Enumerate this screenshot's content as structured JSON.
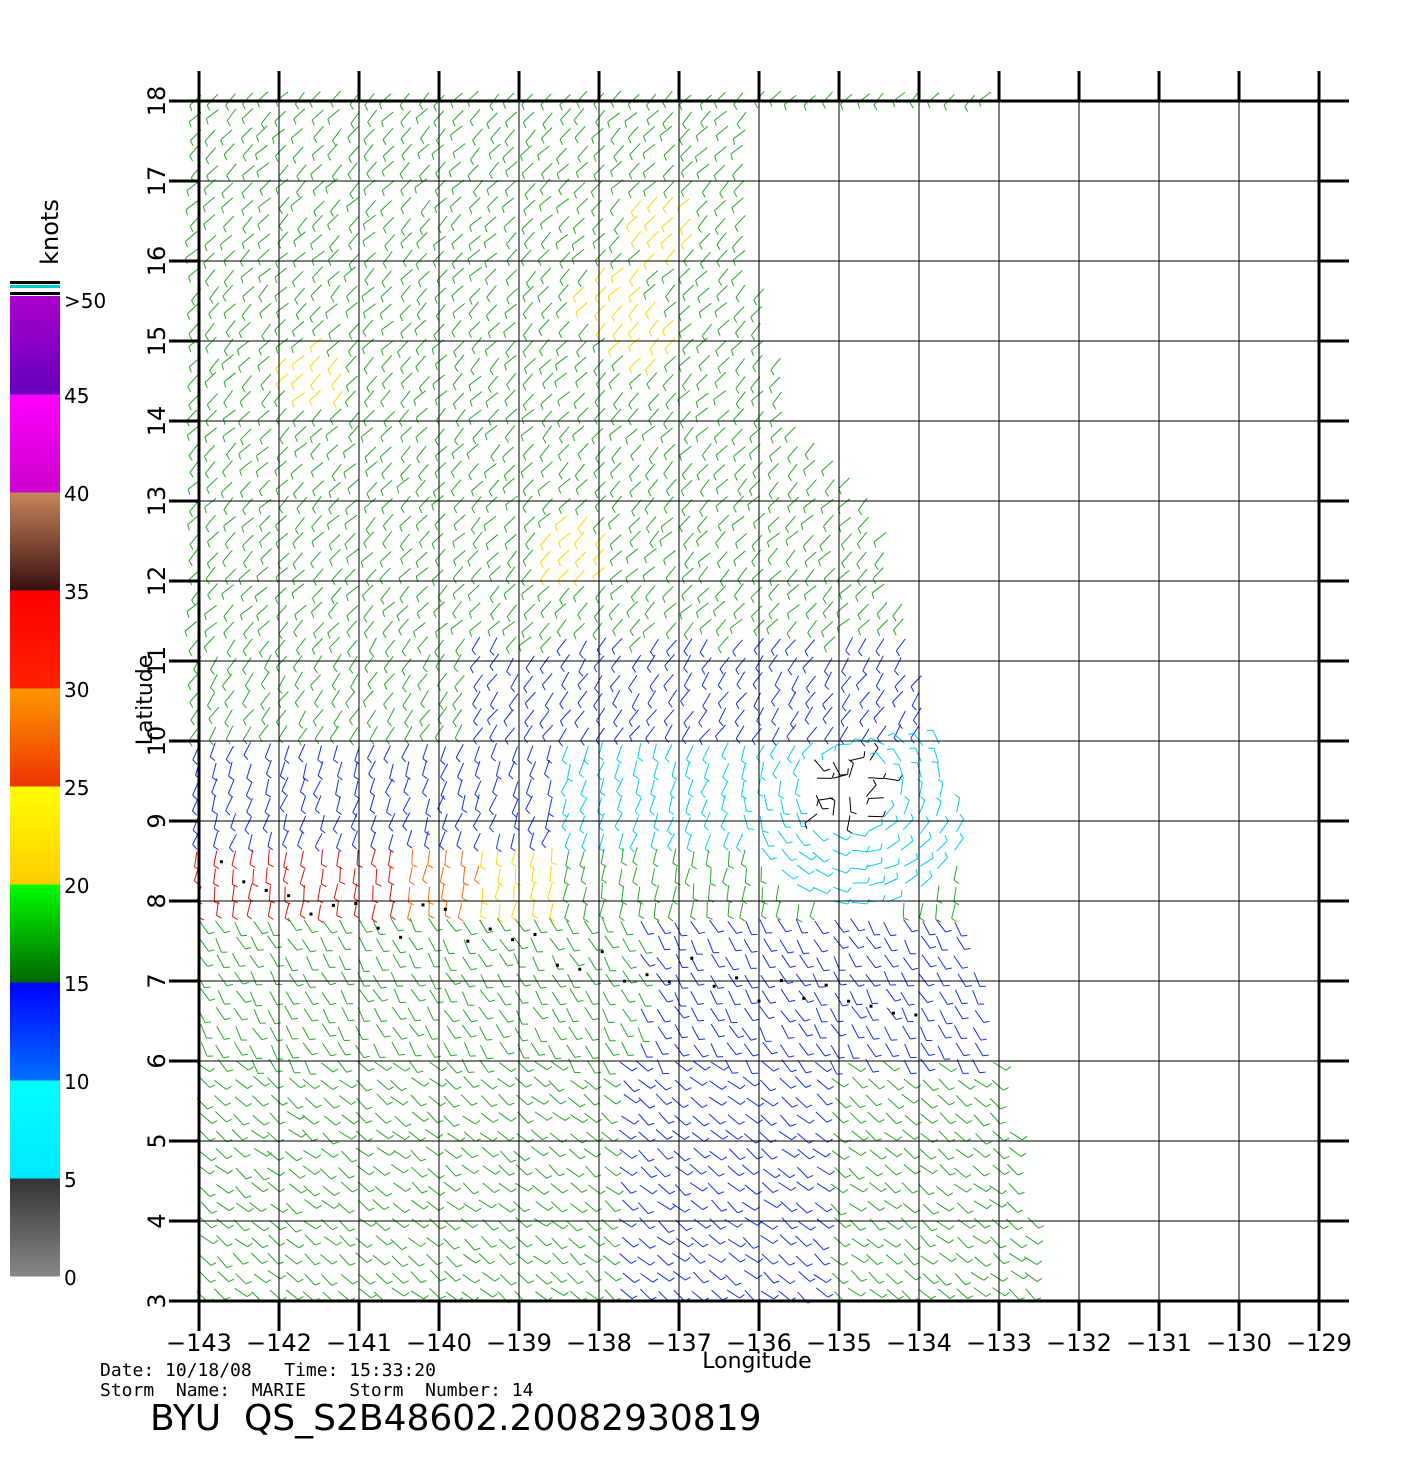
{
  "map": {
    "lon_min": -143,
    "lon_max": -129,
    "lat_min": 3,
    "lat_max": 18,
    "lon_ticks": [
      "-143",
      "-142",
      "-141",
      "-140",
      "-139",
      "-138",
      "-137",
      "-136",
      "-135",
      "-134",
      "-133",
      "-132",
      "-131",
      "-130",
      "-129"
    ],
    "lat_ticks": [
      "3",
      "4",
      "5",
      "6",
      "7",
      "8",
      "9",
      "10",
      "11",
      "12",
      "13",
      "14",
      "15",
      "16",
      "17",
      "18"
    ],
    "xlabel": "Longitude",
    "ylabel": "Latitude",
    "grid": true,
    "swath_east_edge": [
      [
        18,
        -136.0
      ],
      [
        16,
        -136.0
      ],
      [
        14,
        -135.5
      ],
      [
        13,
        -134.5
      ],
      [
        11,
        -134.0
      ],
      [
        9,
        -133.5
      ],
      [
        7,
        -133.3
      ],
      [
        5,
        -132.8
      ],
      [
        3,
        -132.5
      ]
    ],
    "storm_center": {
      "lat": 9.4,
      "lon": -134.8
    }
  },
  "colorbar": {
    "unit_label": "knots",
    "top_label": ">50",
    "tick_labels": [
      "0",
      "5",
      "10",
      "15",
      "20",
      "25",
      "30",
      "35",
      "40",
      "45"
    ],
    "segments": [
      {
        "from": 0,
        "to": 5,
        "top": "#333333",
        "bottom": "#888888"
      },
      {
        "from": 5,
        "to": 10,
        "top": "#00ffff",
        "bottom": "#00e8ff"
      },
      {
        "from": 10,
        "to": 15,
        "top": "#0000ff",
        "bottom": "#0070ff"
      },
      {
        "from": 15,
        "to": 20,
        "top": "#00ff00",
        "bottom": "#006600"
      },
      {
        "from": 20,
        "to": 25,
        "top": "#ffff00",
        "bottom": "#ffcc00"
      },
      {
        "from": 25,
        "to": 30,
        "top": "#ff9900",
        "bottom": "#ee3300"
      },
      {
        "from": 30,
        "to": 35,
        "top": "#ff0000",
        "bottom": "#ff2200"
      },
      {
        "from": 35,
        "to": 40,
        "top": "#c8855a",
        "bottom": "#3a1010"
      },
      {
        "from": 40,
        "to": 45,
        "top": "#ff00ff",
        "bottom": "#cc00cc"
      },
      {
        "from": 45,
        "to": 50,
        "top": "#aa00cc",
        "bottom": "#6600bb"
      }
    ]
  },
  "info": {
    "line1": "Date: 10/18/08   Time: 15:33:20",
    "line2": "Storm  Name:  MARIE    Storm  Number: 14",
    "title": "BYU  QS_S2B48602.20082930819"
  },
  "colors": {
    "wind_5_10": "#00ccee",
    "wind_10_15": "#1030e0",
    "wind_15_20": "#22aa22",
    "wind_20_25": "#ffd400",
    "wind_25_30": "#ff6a00",
    "wind_30_35": "#dd1100",
    "wind_rain": "#000000"
  }
}
